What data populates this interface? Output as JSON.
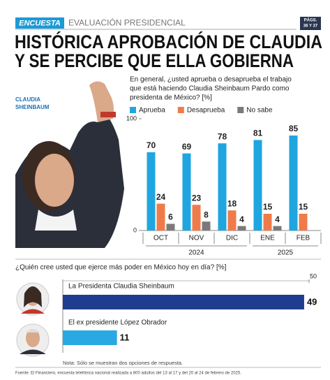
{
  "header": {
    "badge": "ENCUESTA",
    "section": "EVALUACIÓN PRESIDENCIAL",
    "pages": [
      "PÁGS.",
      "36 Y 37"
    ]
  },
  "headline": [
    "HISTÓRICA APROBACIÓN DE CLAUDIA",
    "Y SE PERCIBE QUE ELLA GOBIERNA"
  ],
  "photo_caption": [
    "CLAUDIA",
    "SHEINBAUM"
  ],
  "chart_data": [
    {
      "type": "bar",
      "title": [
        "En general, ¿usted aprueba o desaprueba el trabajo",
        "que está haciendo Claudia Sheinbaum Pardo como",
        "presidenta de México?  [%]"
      ],
      "categories": [
        "OCT",
        "NOV",
        "DIC",
        "ENE",
        "FEB"
      ],
      "groups": [
        "2024",
        "2024",
        "2024",
        "2025",
        "2025"
      ],
      "series": [
        {
          "name": "Aprueba",
          "color": "#1fa6e0",
          "values": [
            70,
            69,
            78,
            81,
            85
          ]
        },
        {
          "name": "Desaprueba",
          "color": "#f07b4a",
          "values": [
            24,
            23,
            18,
            15,
            15
          ]
        },
        {
          "name": "No sabe",
          "color": "#7a7a7a",
          "values": [
            6,
            8,
            4,
            4,
            null
          ]
        }
      ],
      "ylim": [
        0,
        100
      ],
      "yticks": [
        0,
        100
      ],
      "legend": "top-left",
      "grid": false
    },
    {
      "type": "hbar",
      "title": "¿Quién cree usted que ejerce más poder en México hoy en día? [%]",
      "categories": [
        "La Presidenta Claudia Sheinbaum",
        "El ex presidente López Obrador"
      ],
      "values": [
        49,
        11
      ],
      "colors": [
        "#1f3d8f",
        "#29a9e1"
      ],
      "xlim": [
        0,
        50
      ],
      "xticks": [
        50
      ],
      "note": "Nota: Sólo se muestran dos opciones de respuesta."
    }
  ],
  "source": "Fuente: El Financiero, encuesta telefónica nacional realizada a 800 adultos del 13 al 17 y del 20 al 24 de febrero de 2025."
}
